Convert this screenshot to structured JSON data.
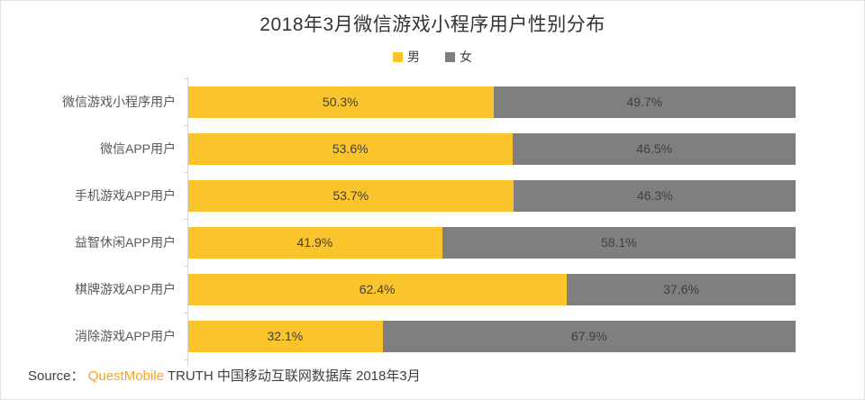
{
  "title": "2018年3月微信游戏小程序用户性别分布",
  "legend": {
    "male_label": "男",
    "female_label": "女"
  },
  "colors": {
    "male": "#FAC42C",
    "female": "#7F7F7F",
    "brand_orange": "#FAA21E"
  },
  "chart_data": {
    "type": "bar",
    "orientation": "horizontal",
    "stacked": true,
    "title": "2018年3月微信游戏小程序用户性别分布",
    "legend_position": "top",
    "grid": false,
    "value_unit": "%",
    "categories": [
      "微信游戏小程序用户",
      "微信APP用户",
      "手机游戏APP用户",
      "益智休闲APP用户",
      "棋牌游戏APP用户",
      "消除游戏APP用户"
    ],
    "series": [
      {
        "name": "男",
        "color": "#FAC42C",
        "values": [
          50.3,
          53.6,
          53.7,
          41.9,
          62.4,
          32.1
        ]
      },
      {
        "name": "女",
        "color": "#7F7F7F",
        "values": [
          49.7,
          46.5,
          46.3,
          58.1,
          37.6,
          67.9
        ]
      }
    ],
    "value_labels": [
      [
        "50.3%",
        "49.7%"
      ],
      [
        "53.6%",
        "46.5%"
      ],
      [
        "53.7%",
        "46.3%"
      ],
      [
        "41.9%",
        "58.1%"
      ],
      [
        "62.4%",
        "37.6%"
      ],
      [
        "32.1%",
        "67.9%"
      ]
    ]
  },
  "source": {
    "prefix": "Source：",
    "brand": "QuestMobile",
    "rest": "TRUTH 中国移动互联网数据库 2018年3月"
  }
}
